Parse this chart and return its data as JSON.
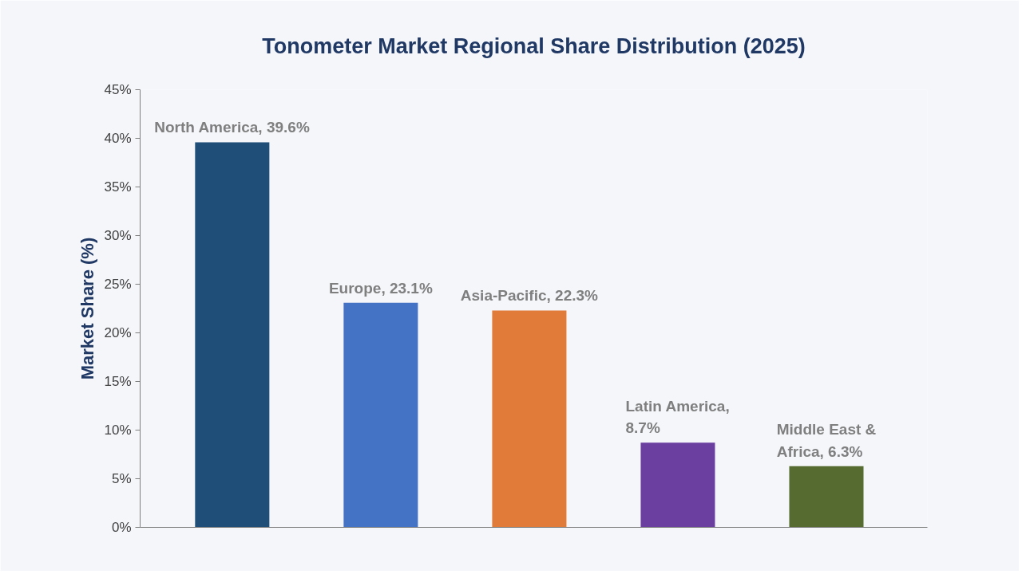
{
  "chart_data": {
    "type": "bar",
    "title": "Tonometer Market Regional Share Distribution (2025)",
    "ylabel": "Market Share (%)",
    "categories": [
      null,
      null,
      null,
      null,
      null
    ],
    "values": [
      39.6,
      23.1,
      22.3,
      8.7,
      6.3
    ],
    "colors": [
      "#1f4e79",
      "#4472c4",
      "#e07b39",
      "#6b3fa0",
      "#556b2f"
    ],
    "value_labels": [
      "North America, 39.6%",
      "Europe, 23.1%",
      "Asia-Pacific, 22.3%",
      "Latin America,\n8.7%",
      "Middle East &\nAfrica, 6.3%"
    ],
    "ylim": [
      0,
      45
    ],
    "yticks": [
      {
        "value": 0,
        "label": "0%"
      },
      {
        "value": 5,
        "label": "5%"
      },
      {
        "value": 10,
        "label": "10%"
      },
      {
        "value": 15,
        "label": "15%"
      },
      {
        "value": 20,
        "label": "20%"
      },
      {
        "value": 25,
        "label": "25%"
      },
      {
        "value": 30,
        "label": "30%"
      },
      {
        "value": 35,
        "label": "35%"
      },
      {
        "value": 40,
        "label": "40%"
      },
      {
        "value": 45,
        "label": "45%"
      }
    ],
    "grid": false
  }
}
